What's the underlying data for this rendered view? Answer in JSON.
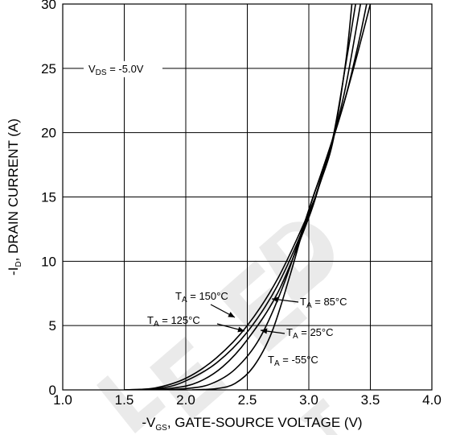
{
  "chart_data": {
    "type": "line",
    "title": "",
    "xlabel": {
      "prefix": "-V",
      "sub": "GS",
      "suffix": ", GATE-SOURCE VOLTAGE (V)"
    },
    "ylabel": {
      "prefix": "-I",
      "sub": "D",
      "suffix": ", DRAIN CURRENT (A)"
    },
    "xlim": [
      1.0,
      4.0
    ],
    "ylim": [
      0,
      30
    ],
    "xticks": [
      "1.0",
      "1.5",
      "2.0",
      "2.5",
      "3.0",
      "3.5",
      "4.0"
    ],
    "yticks": [
      "0",
      "5",
      "10",
      "15",
      "20",
      "25",
      "30"
    ],
    "grid": true,
    "condition": {
      "prefix": "V",
      "sub": "DS",
      "suffix": " = -5.0V"
    },
    "watermark": "DELETED",
    "series": [
      {
        "name": "T_A = 150°C",
        "label": {
          "prefix": "T",
          "sub": "A",
          "suffix": " = 150°C"
        },
        "x": [
          1.5,
          1.75,
          2.0,
          2.25,
          2.5,
          2.75,
          3.0,
          3.1,
          3.2,
          3.3,
          3.35
        ],
        "y": [
          0,
          0.15,
          0.9,
          2.5,
          5.0,
          8.7,
          13.8,
          16.3,
          19.5,
          25.5,
          30
        ]
      },
      {
        "name": "T_A = 125°C",
        "label": {
          "prefix": "T",
          "sub": "A",
          "suffix": " = 125°C"
        },
        "x": [
          1.5,
          1.8,
          2.0,
          2.25,
          2.5,
          2.75,
          3.0,
          3.1,
          3.2,
          3.3,
          3.38
        ],
        "y": [
          0,
          0.15,
          0.7,
          2.1,
          4.5,
          8.2,
          13.6,
          16.5,
          19.8,
          25.3,
          30
        ]
      },
      {
        "name": "T_A = 85°C",
        "label": {
          "prefix": "T",
          "sub": "A",
          "suffix": " = 85°C"
        },
        "x": [
          1.6,
          1.9,
          2.1,
          2.3,
          2.5,
          2.75,
          3.0,
          3.1,
          3.2,
          3.3,
          3.42
        ],
        "y": [
          0,
          0.15,
          0.6,
          1.8,
          3.9,
          7.6,
          13.4,
          16.4,
          19.6,
          23.6,
          30
        ]
      },
      {
        "name": "T_A = 25°C",
        "label": {
          "prefix": "T",
          "sub": "A",
          "suffix": " = 25°C"
        },
        "x": [
          1.75,
          2.0,
          2.2,
          2.4,
          2.6,
          2.8,
          3.0,
          3.1,
          3.2,
          3.3,
          3.4,
          3.47
        ],
        "y": [
          0,
          0.1,
          0.45,
          1.6,
          4.0,
          8.3,
          14.0,
          16.8,
          19.6,
          22.8,
          26.8,
          30
        ]
      },
      {
        "name": "T_A = -55°C",
        "label": {
          "prefix": "T",
          "sub": "A",
          "suffix": " = -55°C"
        },
        "x": [
          2.05,
          2.25,
          2.4,
          2.55,
          2.7,
          2.85,
          3.0,
          3.1,
          3.2,
          3.3,
          3.4,
          3.5
        ],
        "y": [
          0,
          0.1,
          0.5,
          1.8,
          4.5,
          9.0,
          14.0,
          16.8,
          19.7,
          22.8,
          26.3,
          30
        ]
      }
    ]
  }
}
